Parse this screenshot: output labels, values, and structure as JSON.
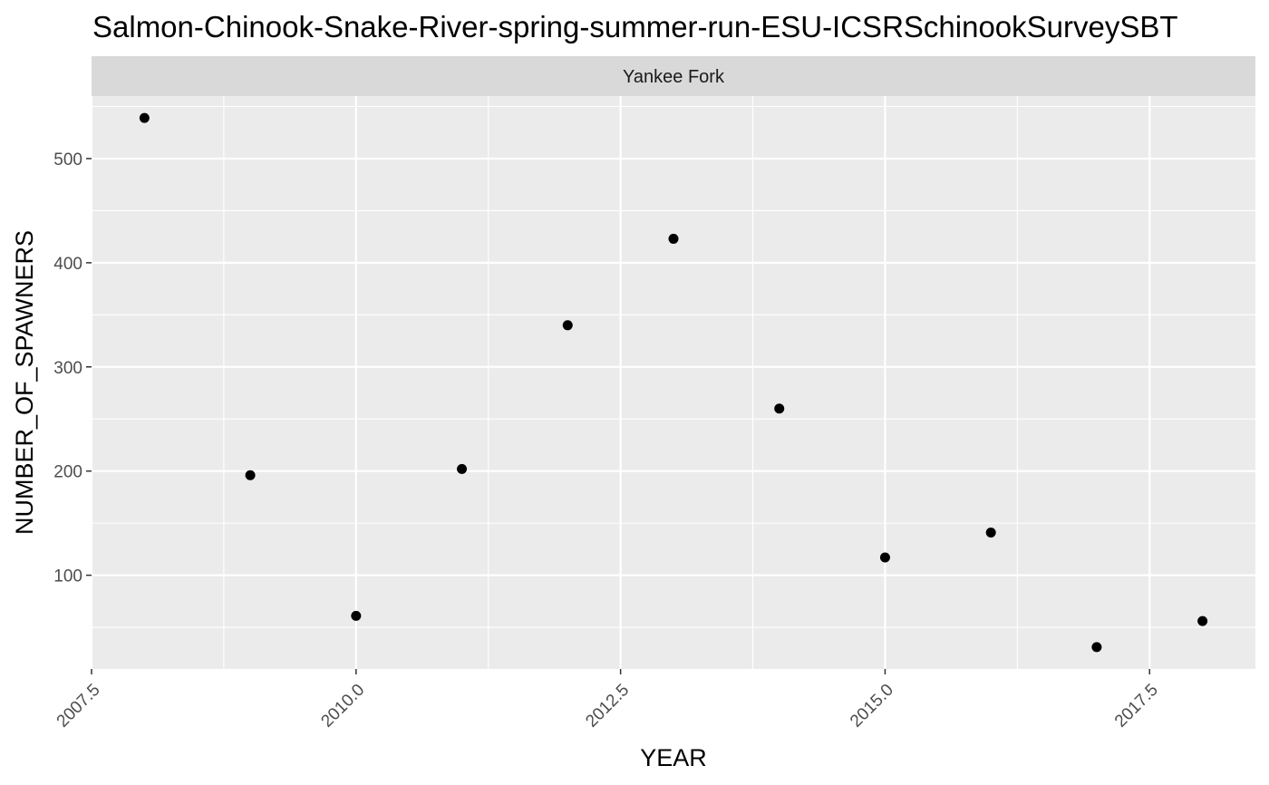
{
  "chart_data": {
    "type": "scatter",
    "title": "Salmon-Chinook-Snake-River-spring-summer-run-ESU-ICSRSchinookSurveySBT",
    "facet": "Yankee Fork",
    "xlabel": "YEAR",
    "ylabel": "NUMBER_OF_SPAWNERS",
    "xlim": [
      2007.5,
      2018.5
    ],
    "ylim": [
      10,
      560
    ],
    "x_ticks": [
      2007.5,
      2010.0,
      2012.5,
      2015.0,
      2017.5
    ],
    "x_tick_labels": [
      "2007.5",
      "2010.0",
      "2012.5",
      "2015.0",
      "2017.5"
    ],
    "y_ticks": [
      100,
      200,
      300,
      400,
      500
    ],
    "y_tick_labels": [
      "100",
      "200",
      "300",
      "400",
      "500"
    ],
    "grid": true,
    "series": [
      {
        "x": [
          2008,
          2009,
          2010,
          2011,
          2012,
          2013,
          2014,
          2015,
          2016,
          2017,
          2018
        ],
        "y": [
          539,
          196,
          61,
          202,
          340,
          423,
          260,
          117,
          141,
          31,
          56
        ]
      }
    ],
    "colors": {
      "panel_background": "#EBEBEB",
      "strip_background": "#D9D9D9",
      "grid": "#FFFFFF",
      "points": "#000000"
    }
  }
}
